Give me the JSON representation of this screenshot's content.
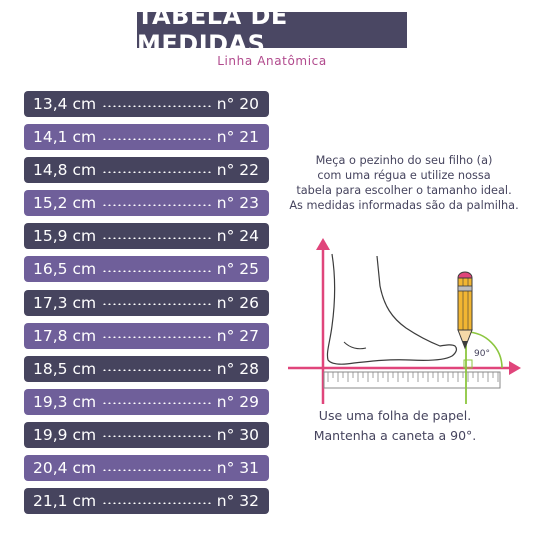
{
  "header": {
    "title": "TABELA DE MEDIDAS",
    "subtitle": "Linha Anatômica"
  },
  "sizes": [
    {
      "cm": "13,4 cm",
      "number": "n° 20",
      "shade": "dark"
    },
    {
      "cm": "14,1 cm",
      "number": "n° 21",
      "shade": "light"
    },
    {
      "cm": "14,8 cm",
      "number": "n° 22",
      "shade": "dark"
    },
    {
      "cm": "15,2 cm",
      "number": "n° 23",
      "shade": "light"
    },
    {
      "cm": "15,9 cm",
      "number": "n° 24",
      "shade": "dark"
    },
    {
      "cm": "16,5 cm",
      "number": "n° 25",
      "shade": "light"
    },
    {
      "cm": "17,3 cm",
      "number": "n° 26",
      "shade": "dark"
    },
    {
      "cm": "17,8 cm",
      "number": "n° 27",
      "shade": "light"
    },
    {
      "cm": "18,5 cm",
      "number": "n° 28",
      "shade": "dark"
    },
    {
      "cm": "19,3 cm",
      "number": "n° 29",
      "shade": "light"
    },
    {
      "cm": "19,9 cm",
      "number": "n° 30",
      "shade": "dark"
    },
    {
      "cm": "20,4 cm",
      "number": "n° 31",
      "shade": "light"
    },
    {
      "cm": "21,1 cm",
      "number": "n° 32",
      "shade": "dark"
    }
  ],
  "instructions": [
    "Meça o pezinho do seu filho (a)",
    "com uma régua e utilize nossa",
    "tabela para escolher o tamanho ideal.",
    "As medidas informadas são da palmilha."
  ],
  "diagram": {
    "angle_label": "90°"
  },
  "caption": [
    "Use uma folha de papel.",
    "Mantenha a caneta a 90°."
  ],
  "colors": {
    "row_dark": "#46445e",
    "row_light": "#6f5f9a",
    "accent_pink": "#e0457b",
    "accent_green": "#8cc63f",
    "subtitle": "#b14a8d"
  }
}
